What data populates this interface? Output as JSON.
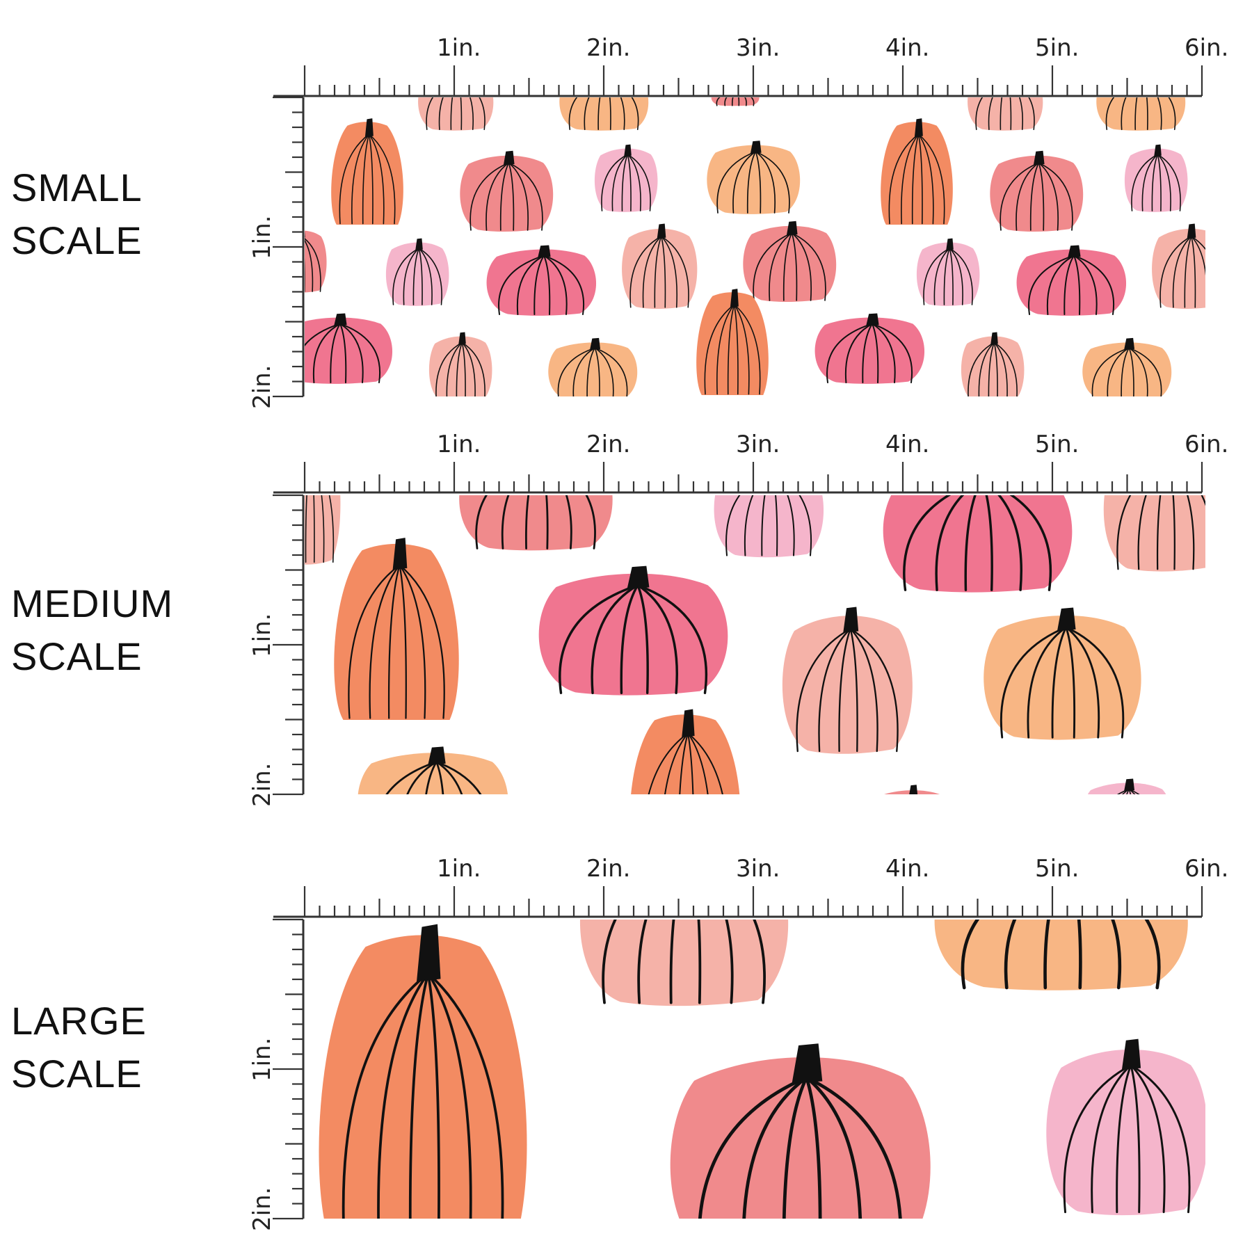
{
  "ruler_unit_labels": [
    "1in.",
    "2in.",
    "3in.",
    "4in.",
    "5in.",
    "6in."
  ],
  "vertical_unit_labels": [
    "1in.",
    "2in."
  ],
  "colors": {
    "orange": "#f38b62",
    "coral": "#f08a8c",
    "hot_pink": "#f07590",
    "light_pink": "#f5b5cb",
    "blush": "#f5b2a8",
    "peach": "#f8b684",
    "stem": "#111111",
    "ruler": "#333333"
  },
  "panels": [
    {
      "label_line1": "SMALL",
      "label_line2": "SCALE"
    },
    {
      "label_line1": "MEDIUM",
      "label_line2": "SCALE"
    },
    {
      "label_line1": "LARGE",
      "label_line2": "SCALE"
    }
  ]
}
